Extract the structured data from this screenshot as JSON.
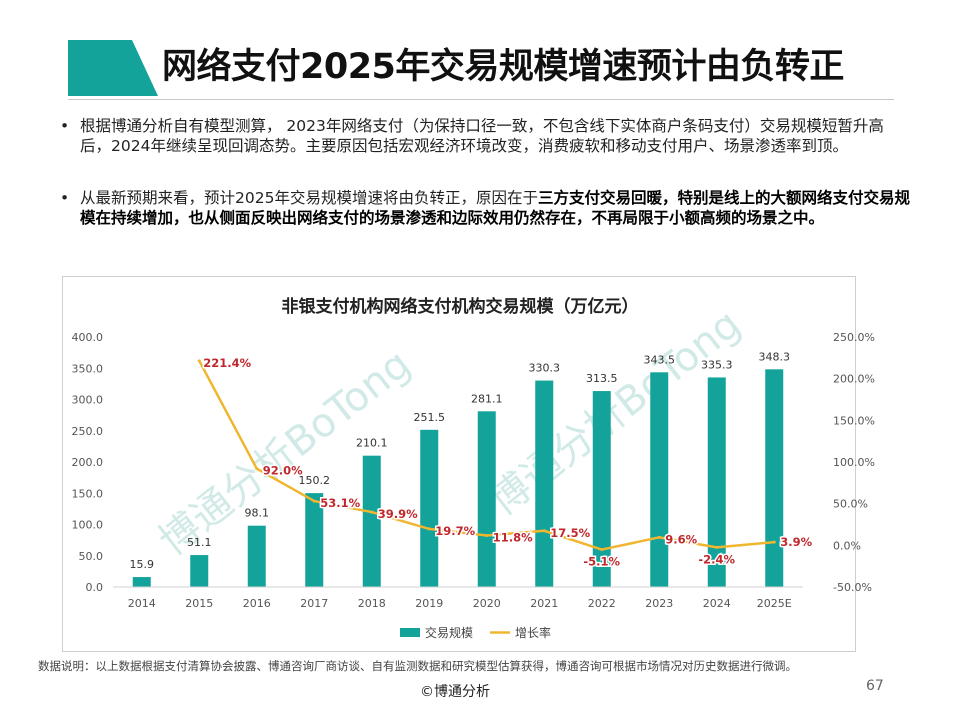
{
  "title": "网络支付2025年交易规模增速预计由负转正",
  "bullets": [
    {
      "text": "根据博通分析自有模型测算， 2023年网络支付（为保持口径一致，不包含线下实体商户条码支付）交易规模短暂升高后，2024年继续呈现回调态势。主要原因包括宏观经济环境改变，消费疲软和移动支付用户、场景渗透率到顶。"
    },
    {
      "text_plain": "从最新预期来看，预计2025年交易规模增速将由负转正，原因在于",
      "text_bold": "三方支付交易回暖，特别是线上的大额网络支付交易规模在持续增加，也从侧面反映出网络支付的场景渗透和边际效用仍然存在，不再局限于小额高频的场景之中。"
    }
  ],
  "chart_data": {
    "type": "bar",
    "title": "非银支付机构网络支付机构交易规模（万亿元）",
    "categories": [
      "2014",
      "2015",
      "2016",
      "2017",
      "2018",
      "2019",
      "2020",
      "2021",
      "2022",
      "2023",
      "2024",
      "2025E"
    ],
    "series": [
      {
        "name": "交易规模",
        "type": "bar",
        "axis": "left",
        "values": [
          15.9,
          51.1,
          98.1,
          150.2,
          210.1,
          251.5,
          281.1,
          330.3,
          313.5,
          343.5,
          335.3,
          348.3
        ],
        "labels": [
          "15.9",
          "51.1",
          "98.1",
          "150.2",
          "210.1",
          "251.5",
          "281.1",
          "330.3",
          "313.5",
          "343.5",
          "335.3",
          "348.3"
        ],
        "color": "#13a39a"
      },
      {
        "name": "增长率",
        "type": "line",
        "axis": "right",
        "values": [
          null,
          221.4,
          92.0,
          53.1,
          39.9,
          19.7,
          11.8,
          17.5,
          -5.1,
          9.6,
          -2.4,
          3.9
        ],
        "labels": [
          "",
          "221.4%",
          "92.0%",
          "53.1%",
          "39.9%",
          "19.7%",
          "11.8%",
          "17.5%",
          "-5.1%",
          "9.6%",
          "-2.4%",
          "3.9%"
        ],
        "color": "#f0b630",
        "label_color": "#c0282d"
      }
    ],
    "y_left": {
      "ylim": [
        0,
        400
      ],
      "ticks": [
        "0.0",
        "50.0",
        "100.0",
        "150.0",
        "200.0",
        "250.0",
        "300.0",
        "350.0",
        "400.0"
      ]
    },
    "y_right": {
      "ylim": [
        -50,
        250
      ],
      "ticks": [
        "-50.0%",
        "0.0%",
        "50.0%",
        "100.0%",
        "150.0%",
        "200.0%",
        "250.0%"
      ]
    },
    "legend_position": "bottom",
    "grid": false
  },
  "watermark": "博通分析BoTong",
  "note": "数据说明：以上数据根据支付清算协会披露、博通咨询厂商访谈、自有监测数据和研究模型估算获得，博通咨询可根据市场情况对历史数据进行微调。",
  "footer": "©博通分析",
  "page_number": "67",
  "colors": {
    "accent": "#13a39a",
    "bar": "#13a39a",
    "line": "#f0b630",
    "rate_label": "#c0282d"
  }
}
